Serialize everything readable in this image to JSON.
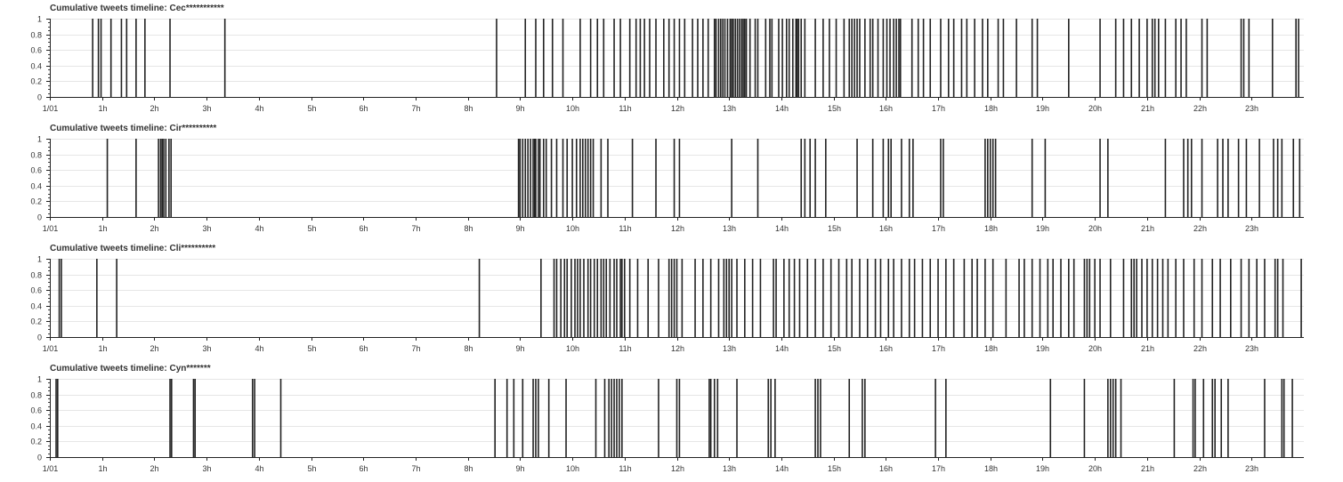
{
  "chart_data": [
    {
      "type": "event-timeline",
      "title": "Cumulative tweets timeline: Cec***********",
      "x_ticks": [
        "1/01",
        "1h",
        "2h",
        "3h",
        "4h",
        "5h",
        "6h",
        "7h",
        "8h",
        "9h",
        "10h",
        "11h",
        "12h",
        "13h",
        "14h",
        "15h",
        "16h",
        "17h",
        "18h",
        "19h",
        "20h",
        "21h",
        "22h",
        "23h"
      ],
      "xlim_hours": [
        0,
        24
      ],
      "y_ticks": [
        "0",
        "0.2",
        "0.4",
        "0.6",
        "0.8",
        "1"
      ],
      "ylim": [
        0,
        1
      ],
      "grid": true,
      "event_color": "#222222",
      "events_hours": [
        0.82,
        0.93,
        0.98,
        1.17,
        1.37,
        1.47,
        1.65,
        1.82,
        2.3,
        3.35,
        8.55,
        9.1,
        9.3,
        9.45,
        9.62,
        9.82,
        10.15,
        10.35,
        10.48,
        10.6,
        10.8,
        10.92,
        11.1,
        11.22,
        11.3,
        11.38,
        11.48,
        11.6,
        11.75,
        11.85,
        11.95,
        12.05,
        12.15,
        12.3,
        12.4,
        12.5,
        12.6,
        12.72,
        12.75,
        12.8,
        12.84,
        12.88,
        12.92,
        12.97,
        13.02,
        13.05,
        13.08,
        13.12,
        13.16,
        13.2,
        13.24,
        13.27,
        13.3,
        13.33,
        13.4,
        13.5,
        13.55,
        13.7,
        13.78,
        13.82,
        13.95,
        14.02,
        14.1,
        14.15,
        14.22,
        14.28,
        14.3,
        14.33,
        14.38,
        14.45,
        14.65,
        14.8,
        14.92,
        15.05,
        15.2,
        15.3,
        15.35,
        15.4,
        15.45,
        15.5,
        15.6,
        15.7,
        15.75,
        15.85,
        15.95,
        16.02,
        16.08,
        16.15,
        16.2,
        16.25,
        16.28,
        16.5,
        16.62,
        16.72,
        16.85,
        17.05,
        17.2,
        17.3,
        17.45,
        17.55,
        17.7,
        17.85,
        17.95,
        18.15,
        18.25,
        18.5,
        18.8,
        18.9,
        19.5,
        20.1,
        20.4,
        20.55,
        20.7,
        20.85,
        21.0,
        21.1,
        21.15,
        21.22,
        21.35,
        21.55,
        21.65,
        21.75,
        22.05,
        22.15,
        22.8,
        22.85,
        22.95,
        23.4,
        23.85,
        23.9
      ]
    },
    {
      "type": "event-timeline",
      "title": "Cumulative tweets timeline: Cir**********",
      "x_ticks": [
        "1/01",
        "1h",
        "2h",
        "3h",
        "4h",
        "5h",
        "6h",
        "7h",
        "8h",
        "9h",
        "10h",
        "11h",
        "12h",
        "13h",
        "14h",
        "15h",
        "16h",
        "17h",
        "18h",
        "19h",
        "20h",
        "21h",
        "22h",
        "23h"
      ],
      "xlim_hours": [
        0,
        24
      ],
      "y_ticks": [
        "0",
        "0.2",
        "0.4",
        "0.6",
        "0.8",
        "1"
      ],
      "ylim": [
        0,
        1
      ],
      "grid": true,
      "event_color": "#222222",
      "events_hours": [
        1.1,
        1.65,
        2.08,
        2.12,
        2.15,
        2.18,
        2.22,
        2.28,
        2.32,
        8.97,
        9.0,
        9.05,
        9.1,
        9.15,
        9.2,
        9.25,
        9.28,
        9.3,
        9.35,
        9.38,
        9.45,
        9.5,
        9.6,
        9.7,
        9.82,
        9.9,
        10.0,
        10.08,
        10.15,
        10.2,
        10.25,
        10.3,
        10.35,
        10.4,
        10.55,
        10.68,
        11.15,
        11.6,
        11.95,
        12.05,
        13.05,
        13.55,
        14.38,
        14.45,
        14.55,
        14.65,
        14.85,
        15.45,
        15.75,
        15.95,
        16.05,
        16.1,
        16.3,
        16.45,
        16.52,
        17.05,
        17.1,
        17.9,
        17.95,
        18.0,
        18.05,
        18.1,
        18.8,
        19.05,
        20.1,
        20.25,
        21.35,
        21.7,
        21.78,
        21.85,
        22.05,
        22.35,
        22.45,
        22.55,
        22.75,
        22.9,
        23.15,
        23.42,
        23.5,
        23.58,
        23.8,
        23.92
      ]
    },
    {
      "type": "event-timeline",
      "title": "Cumulative tweets timeline: Cli**********",
      "x_ticks": [
        "1/01",
        "1h",
        "2h",
        "3h",
        "4h",
        "5h",
        "6h",
        "7h",
        "8h",
        "9h",
        "10h",
        "11h",
        "12h",
        "13h",
        "14h",
        "15h",
        "16h",
        "17h",
        "18h",
        "19h",
        "20h",
        "21h",
        "22h",
        "23h"
      ],
      "xlim_hours": [
        0,
        24
      ],
      "y_ticks": [
        "0",
        "0.2",
        "0.4",
        "0.6",
        "0.8",
        "1"
      ],
      "ylim": [
        0,
        1
      ],
      "grid": true,
      "event_color": "#222222",
      "events_hours": [
        0.18,
        0.22,
        0.9,
        1.28,
        8.22,
        9.4,
        9.65,
        9.7,
        9.78,
        9.85,
        9.9,
        9.98,
        10.05,
        10.1,
        10.15,
        10.22,
        10.3,
        10.35,
        10.42,
        10.48,
        10.55,
        10.6,
        10.65,
        10.72,
        10.8,
        10.85,
        10.92,
        10.95,
        11.0,
        11.1,
        11.25,
        11.45,
        11.65,
        11.85,
        11.9,
        11.95,
        12.0,
        12.1,
        12.35,
        12.5,
        12.65,
        12.8,
        12.9,
        12.95,
        13.0,
        13.05,
        13.15,
        13.3,
        13.45,
        13.6,
        13.85,
        13.9,
        14.05,
        14.15,
        14.25,
        14.35,
        14.5,
        14.65,
        14.8,
        14.95,
        15.1,
        15.25,
        15.35,
        15.5,
        15.65,
        15.8,
        15.9,
        16.05,
        16.15,
        16.3,
        16.45,
        16.55,
        16.7,
        16.85,
        17.0,
        17.15,
        17.3,
        17.5,
        17.65,
        17.75,
        17.9,
        18.05,
        18.3,
        18.55,
        18.65,
        18.8,
        18.95,
        19.1,
        19.2,
        19.35,
        19.5,
        19.6,
        19.8,
        19.85,
        19.9,
        20.0,
        20.1,
        20.3,
        20.55,
        20.7,
        20.75,
        20.8,
        20.9,
        21.0,
        21.1,
        21.2,
        21.3,
        21.4,
        21.55,
        21.7,
        21.9,
        22.05,
        22.25,
        22.4,
        22.6,
        22.8,
        22.95,
        23.1,
        23.25,
        23.45,
        23.5,
        23.6,
        23.95
      ]
    },
    {
      "type": "event-timeline",
      "title": "Cumulative tweets timeline: Cyn*******",
      "x_ticks": [
        "1/01",
        "1h",
        "2h",
        "3h",
        "4h",
        "5h",
        "6h",
        "7h",
        "8h",
        "9h",
        "10h",
        "11h",
        "12h",
        "13h",
        "14h",
        "15h",
        "16h",
        "17h",
        "18h",
        "19h",
        "20h",
        "21h",
        "22h",
        "23h"
      ],
      "xlim_hours": [
        0,
        24
      ],
      "y_ticks": [
        "0",
        "0.2",
        "0.4",
        "0.6",
        "0.8",
        "1"
      ],
      "ylim": [
        0,
        1
      ],
      "grid": true,
      "event_color": "#222222",
      "events_hours": [
        0.12,
        0.15,
        2.3,
        2.33,
        2.75,
        2.78,
        3.88,
        3.92,
        4.42,
        8.52,
        8.75,
        8.88,
        9.05,
        9.25,
        9.3,
        9.35,
        9.55,
        9.88,
        10.45,
        10.62,
        10.7,
        10.75,
        10.8,
        10.85,
        10.9,
        10.95,
        11.65,
        12.0,
        12.05,
        12.62,
        12.65,
        12.72,
        12.78,
        13.15,
        13.75,
        13.8,
        13.88,
        14.65,
        14.7,
        14.75,
        15.3,
        15.55,
        15.6,
        16.95,
        17.15,
        19.15,
        19.8,
        20.25,
        20.3,
        20.35,
        20.4,
        20.5,
        21.52,
        21.88,
        21.92,
        22.08,
        22.25,
        22.3,
        22.42,
        22.55,
        23.25,
        23.58,
        23.62,
        23.78
      ]
    }
  ]
}
